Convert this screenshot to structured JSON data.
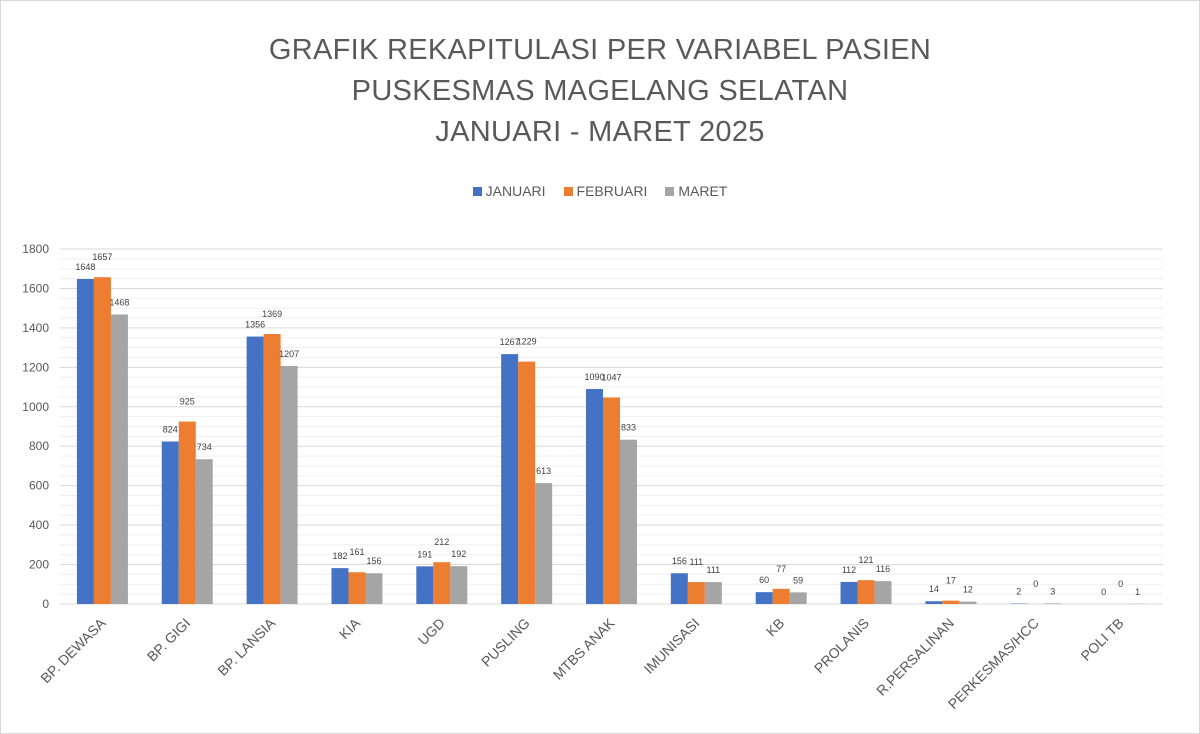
{
  "chart_data": {
    "type": "bar",
    "title_lines": [
      "GRAFIK REKAPITULASI PER VARIABEL PASIEN",
      "PUSKESMAS MAGELANG SELATAN",
      "JANUARI - MARET 2025"
    ],
    "categories": [
      "BP. DEWASA",
      "BP. GIGI",
      "BP. LANSIA",
      "KIA",
      "UGD",
      "PUSLING",
      "MTBS ANAK",
      "IMUNISASI",
      "KB",
      "PROLANIS",
      "R.PERSALINAN",
      "PERKESMAS/HCC",
      "POLI TB"
    ],
    "series": [
      {
        "name": "JANUARI",
        "color": "#4472c4",
        "values": [
          1648,
          824,
          1356,
          182,
          191,
          1267,
          1090,
          156,
          60,
          112,
          14,
          2,
          0
        ]
      },
      {
        "name": "FEBRUARI",
        "color": "#ed7d31",
        "values": [
          1657,
          925,
          1369,
          161,
          212,
          1229,
          1047,
          111,
          77,
          121,
          17,
          0,
          0
        ]
      },
      {
        "name": "MARET",
        "color": "#a5a5a5",
        "values": [
          1468,
          734,
          1207,
          156,
          192,
          613,
          833,
          111,
          59,
          116,
          12,
          3,
          1
        ]
      }
    ],
    "ylim": [
      0,
      1800
    ],
    "yticks": [
      0,
      200,
      400,
      600,
      800,
      1000,
      1200,
      1400,
      1600,
      1800
    ],
    "grid": true,
    "legend_position": "top-center"
  }
}
